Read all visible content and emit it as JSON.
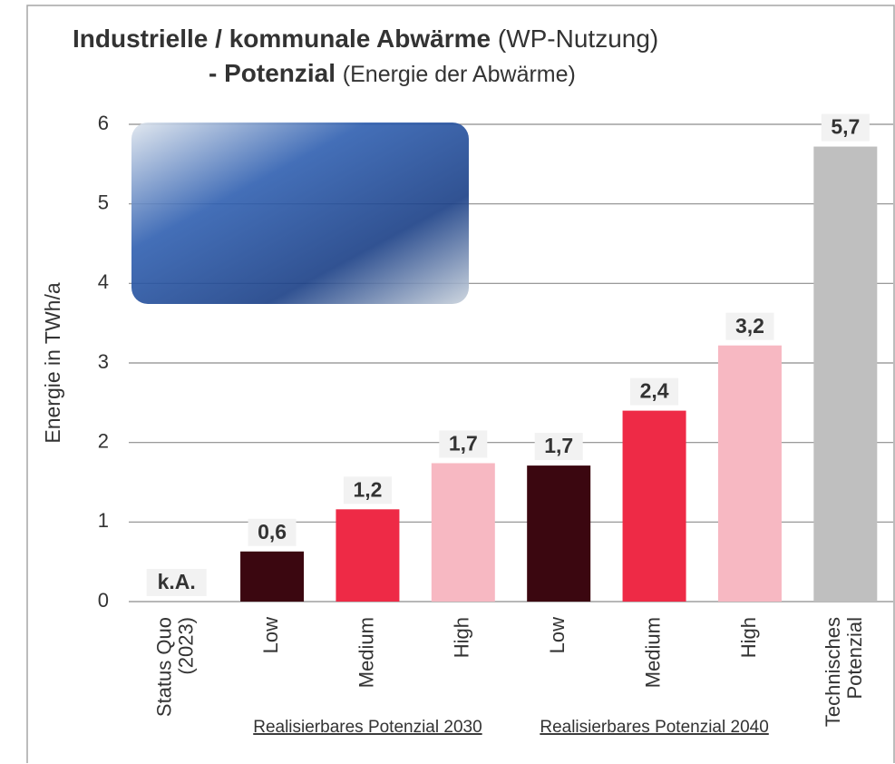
{
  "chart_data": {
    "type": "bar",
    "title": "Industrielle / kommunale Abwärme",
    "title_note": "(WP-Nutzung)",
    "subtitle": "- Potenzial",
    "subtitle_note": "(Energie der Abwärme)",
    "y_label": "Energie in TWh/a",
    "categories": [
      [
        "Status Quo",
        "(2023)"
      ],
      [
        "Low"
      ],
      [
        "Medium"
      ],
      [
        "High"
      ],
      [
        "Low"
      ],
      [
        "Medium"
      ],
      [
        "High"
      ],
      [
        "Technisches",
        "Potenzial"
      ]
    ],
    "groups": [
      null,
      "Realisierbares Potenzial 2030",
      "Realisierbares Potenzial 2030",
      "Realisierbares Potenzial 2030",
      "Realisierbares Potenzial 2040",
      "Realisierbares Potenzial 2040",
      "Realisierbares Potenzial 2040",
      null
    ],
    "values": [
      null,
      0.63,
      1.16,
      1.74,
      1.71,
      2.4,
      3.22,
      5.72
    ],
    "value_labels": [
      "k.A.",
      "0,6",
      "1,2",
      "1,7",
      "1,7",
      "2,4",
      "3,2",
      "5,7"
    ],
    "colors": [
      "#3b0710",
      "#3b0710",
      "#ee2a46",
      "#f7b8c2",
      "#3b0710",
      "#ee2a46",
      "#f7b8c2",
      "#bfbfbf"
    ],
    "ylim": [
      0,
      6
    ],
    "yticks": [
      0,
      1,
      2,
      3,
      4,
      5,
      6
    ],
    "grid": true
  }
}
